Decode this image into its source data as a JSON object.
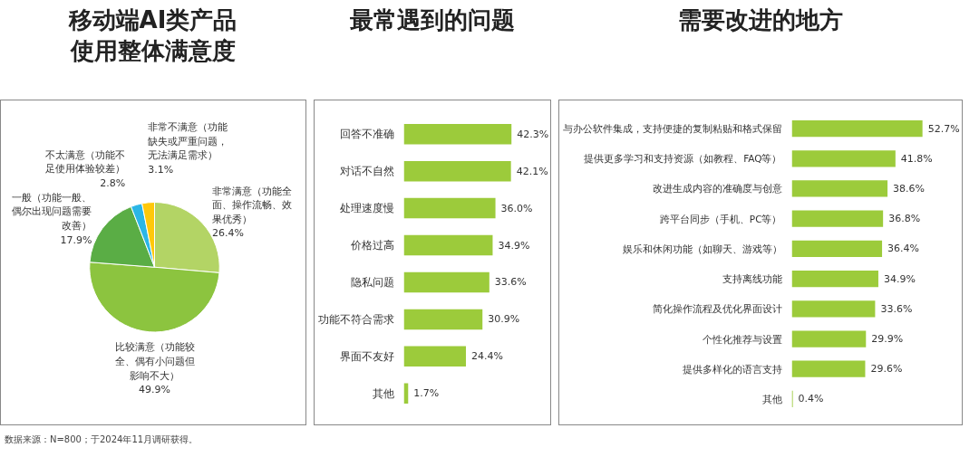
{
  "chart_data": [
    {
      "type": "pie",
      "title": "移动端AI类产品使用整体满意度",
      "categories": [
        "非常满意（功能全面、操作流畅、效果优秀）",
        "比较满意（功能较全、偶有小问题但影响不大）",
        "一般（功能一般、偶尔出现问题需要改善）",
        "不太满意（功能不足使用体验较差）",
        "非常不满意（功能缺失或严重问题，无法满足需求）"
      ],
      "values": [
        26.4,
        49.9,
        17.9,
        2.8,
        3.1
      ],
      "value_labels": [
        "26.4%",
        "49.9%",
        "17.9%",
        "2.8%",
        "3.1%"
      ],
      "colors": [
        "#b3d465",
        "#8cc43f",
        "#5aad45",
        "#2bb6e6",
        "#ffc80a"
      ]
    },
    {
      "type": "bar",
      "orientation": "horizontal",
      "title": "最常遇到的问题",
      "categories": [
        "回答不准确",
        "对话不自然",
        "处理速度慢",
        "价格过高",
        "隐私问题",
        "功能不符合需求",
        "界面不友好",
        "其他"
      ],
      "values": [
        42.3,
        42.1,
        36.0,
        34.9,
        33.6,
        30.9,
        24.4,
        1.7
      ],
      "value_labels": [
        "42.3%",
        "42.1%",
        "36.0%",
        "34.9%",
        "33.6%",
        "30.9%",
        "24.4%",
        "1.7%"
      ],
      "color": "#9ccb3b",
      "xlim": [
        0,
        57
      ],
      "tick_labels": "y",
      "grid": false
    },
    {
      "type": "bar",
      "orientation": "horizontal",
      "title": "需要改进的地方",
      "categories": [
        "与办公软件集成，支持便捷的复制粘贴和格式保留",
        "提供更多学习和支持资源（如教程、FAQ等）",
        "改进生成内容的准确度与创意",
        "跨平台同步（手机、PC等）",
        "娱乐和休闲功能（如聊天、游戏等）",
        "支持离线功能",
        "简化操作流程及优化界面设计",
        "个性化推荐与设置",
        "提供多样化的语言支持",
        "其他"
      ],
      "values": [
        52.7,
        41.8,
        38.6,
        36.8,
        36.4,
        34.9,
        33.6,
        29.9,
        29.6,
        0.4
      ],
      "value_labels": [
        "52.7%",
        "41.8%",
        "38.6%",
        "36.8%",
        "36.4%",
        "34.9%",
        "33.6%",
        "29.9%",
        "29.6%",
        "0.4%"
      ],
      "color": "#9ccb3b",
      "xlim": [
        0,
        68
      ],
      "tick_labels": "y",
      "grid": false,
      "annotations": [
        "数据来源：N=800；于2024年11月调研获得。"
      ]
    }
  ]
}
